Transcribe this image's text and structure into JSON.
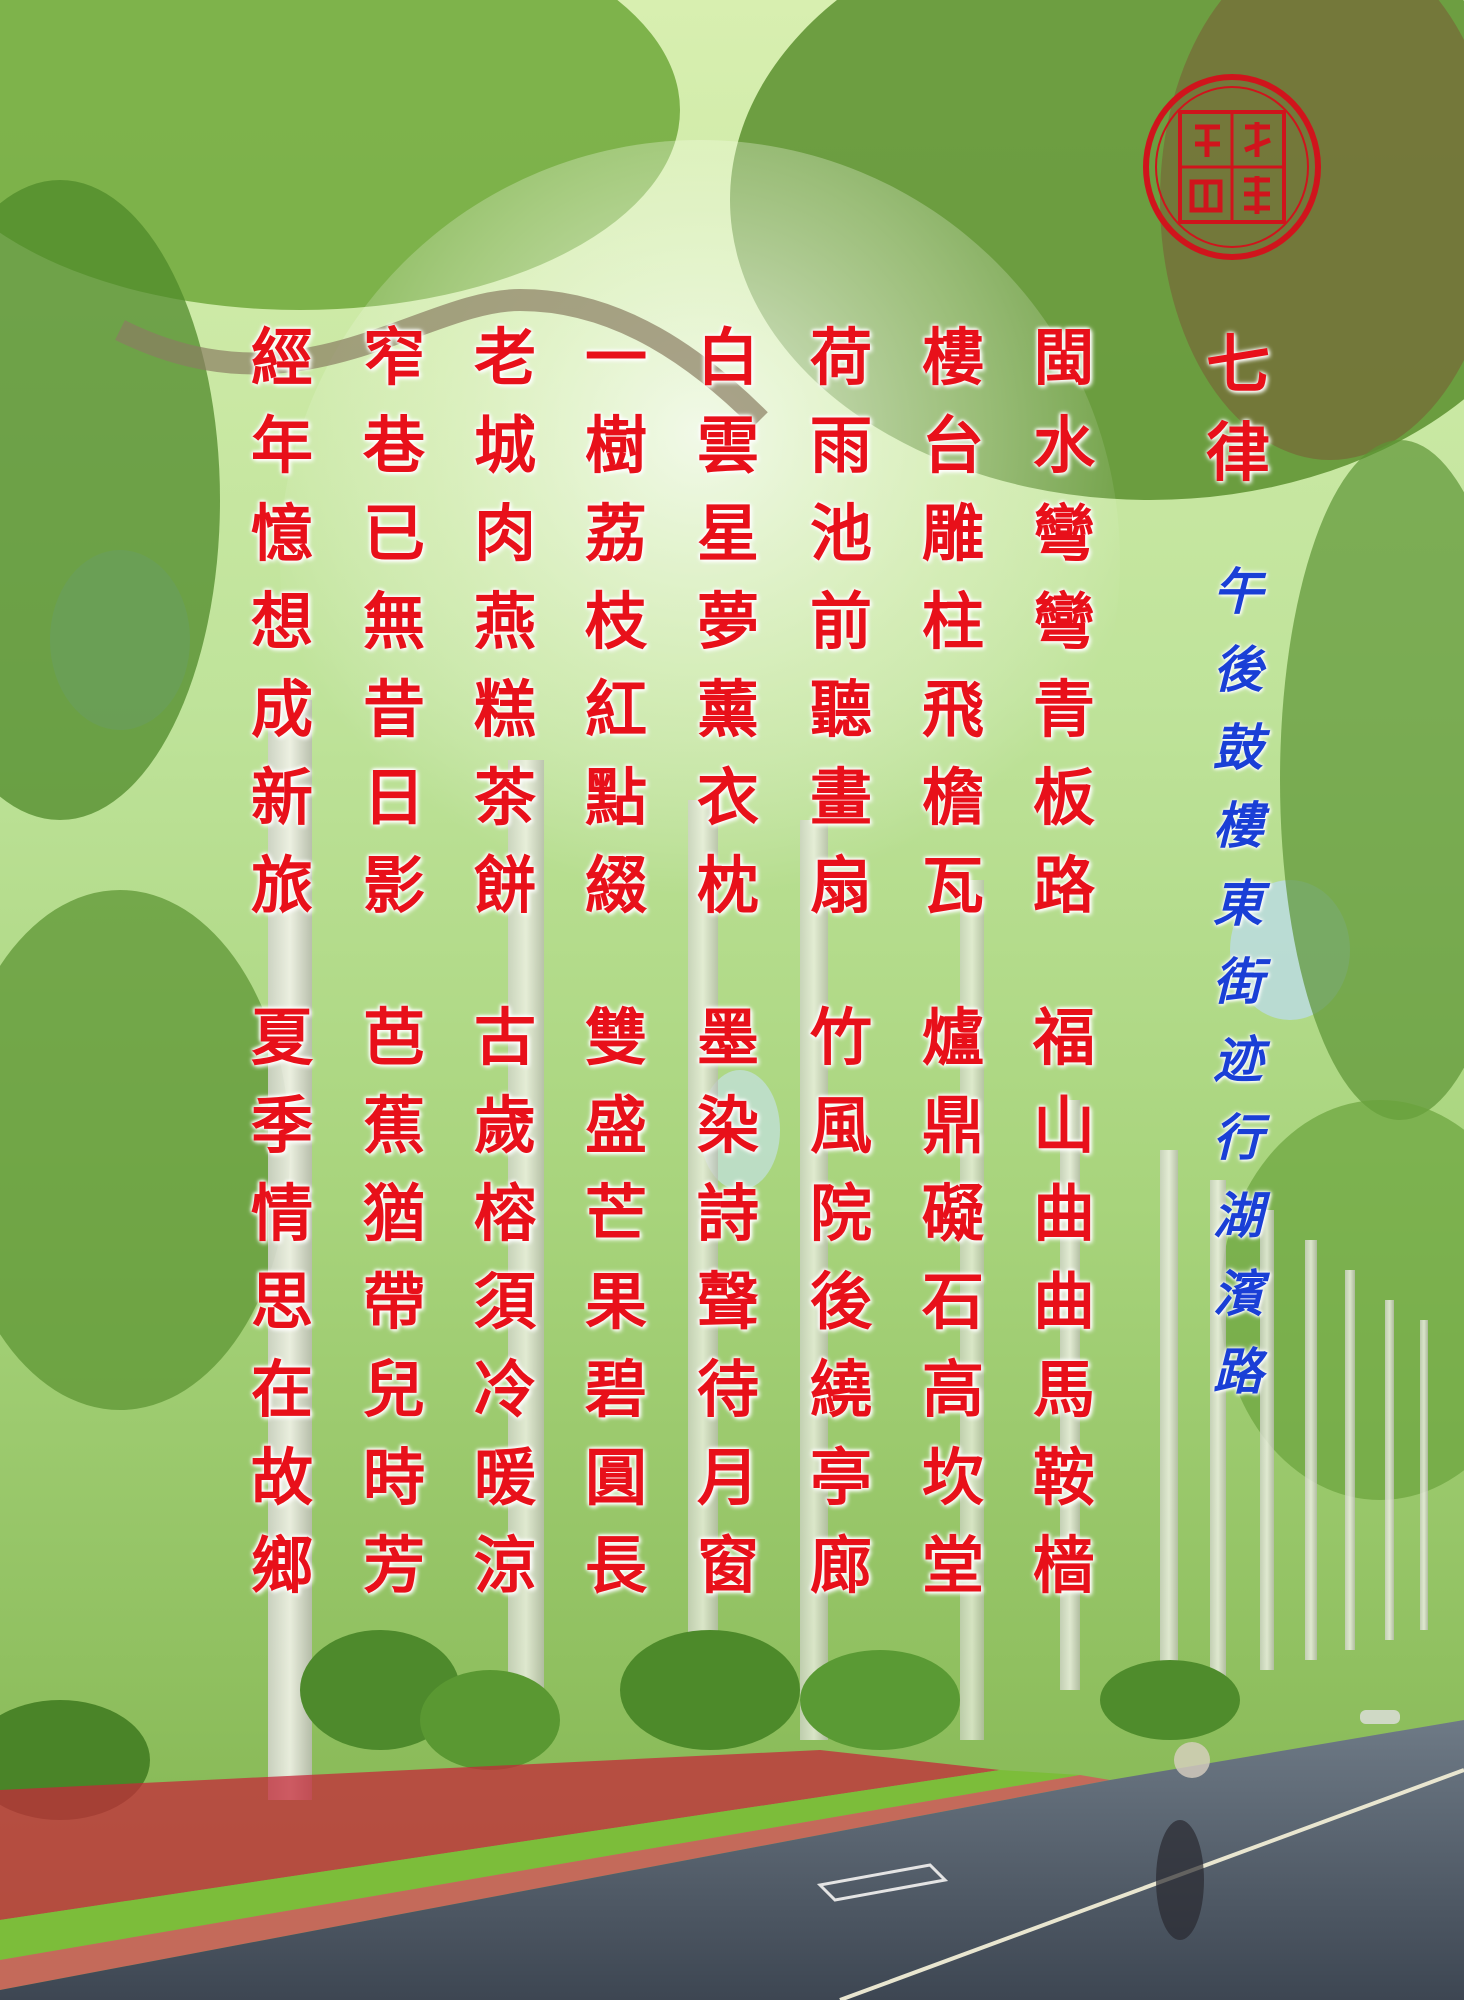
{
  "title": "七律",
  "subtitle": "午後鼓樓東街迹行湖濱路",
  "colors": {
    "poem_text": "#e8101a",
    "subtitle_text": "#1a3fd6",
    "seal": "#d0141c"
  },
  "seal_text": "何首明印",
  "verse1": [
    "閩水彎彎青板路",
    "樓台雕柱飛檐瓦",
    "荷雨池前聽畫扇",
    "白雲星夢薰衣枕",
    "一樹荔枝紅點綴",
    "老城肉燕糕茶餅",
    "窄巷已無昔日影",
    "經年憶想成新旅"
  ],
  "verse2": [
    "福山曲曲馬鞍樯",
    "爐鼎礙石高坎堂",
    "竹風院後繞亭廊",
    "墨染詩聲待月窗",
    "雙盛芒果碧圓長",
    "古歲榕須冷暖涼",
    "芭蕉猶帶兒時芳",
    "夏季情思在故鄉"
  ]
}
